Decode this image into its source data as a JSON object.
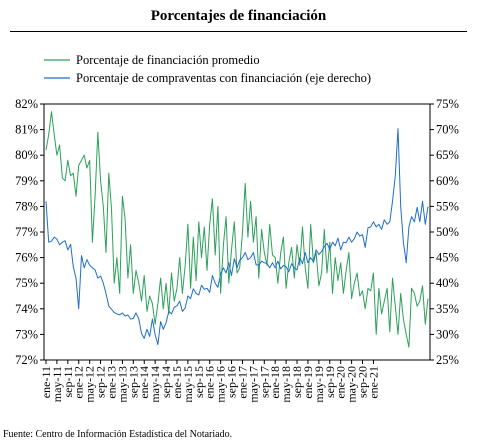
{
  "chart_data": {
    "type": "line",
    "title": "Porcentajes de financiación",
    "source": "Fuente: Centro de Información Estadística del Notariado.",
    "legend_position": "top-left",
    "x_labels": [
      "ene-11",
      "may-11",
      "sep-11",
      "ene-12",
      "may-12",
      "sep-12",
      "ene-13",
      "may-13",
      "sep-13",
      "ene-14",
      "may-14",
      "sep-14",
      "ene-15",
      "may-15",
      "sep-15",
      "ene-16",
      "may-16",
      "sep-16",
      "ene-17",
      "may-17",
      "sep-17",
      "ene-18",
      "may-18",
      "sep-18",
      "ene-19",
      "may-19",
      "sep-19",
      "ene-20",
      "may-20",
      "sep-20",
      "ene-21"
    ],
    "y_left": {
      "ticks": [
        "72%",
        "73%",
        "74%",
        "75%",
        "76%",
        "77%",
        "78%",
        "79%",
        "80%",
        "81%",
        "82%"
      ],
      "min": 72,
      "max": 82
    },
    "y_right": {
      "ticks": [
        "25%",
        "30%",
        "35%",
        "40%",
        "45%",
        "50%",
        "55%",
        "60%",
        "65%",
        "70%",
        "75%"
      ],
      "min": 25,
      "max": 75
    },
    "series": [
      {
        "name": "Porcentaje de financiación promedio",
        "color": "#2ca05a",
        "axis": "left",
        "values": [
          80.2,
          80.8,
          81.7,
          80.8,
          80.0,
          80.4,
          79.1,
          79.0,
          79.8,
          79.2,
          79.3,
          78.4,
          79.6,
          79.8,
          80.0,
          79.5,
          79.8,
          76.6,
          78.4,
          80.9,
          79.0,
          78.0,
          76.2,
          79.3,
          77.9,
          75.0,
          76.0,
          74.6,
          78.4,
          77.5,
          75.2,
          76.5,
          74.6,
          75.5,
          75.0,
          74.3,
          75.3,
          73.9,
          74.5,
          74.2,
          73.4,
          74.2,
          75.2,
          74.0,
          75.0,
          73.8,
          75.4,
          74.3,
          74.8,
          76.0,
          74.6,
          75.7,
          77.3,
          74.8,
          76.8,
          75.1,
          77.4,
          76.0,
          77.2,
          75.5,
          77.3,
          78.3,
          76.1,
          78.0,
          74.6,
          76.5,
          77.6,
          75.0,
          76.3,
          77.4,
          75.4,
          75.6,
          77.0,
          78.9,
          76.8,
          78.2,
          76.6,
          77.6,
          75.2,
          77.1,
          76.2,
          75.7,
          77.3,
          76.1,
          76.0,
          75.0,
          76.2,
          76.8,
          74.8,
          75.8,
          76.4,
          75.2,
          76.5,
          75.7,
          77.2,
          75.6,
          74.8,
          77.3,
          75.8,
          76.2,
          74.9,
          75.4,
          77.1,
          75.4,
          76.6,
          74.6,
          76.0,
          75.1,
          75.8,
          74.6,
          75.5,
          76.2,
          74.4,
          75.0,
          75.4,
          74.5,
          74.7,
          74.0,
          74.8,
          74.7,
          75.4,
          73.0,
          74.8,
          73.8,
          74.3,
          74.8,
          73.1,
          75.2,
          74.1,
          73.0,
          74.6,
          73.6,
          73.0,
          72.5,
          74.8,
          74.6,
          74.1,
          74.3,
          74.9,
          73.4,
          74.4
        ]
      },
      {
        "name": "Porcentaje de compraventas con financiación (eje derecho)",
        "color": "#1f6fc6",
        "axis": "right",
        "values": [
          56.0,
          48.0,
          48.2,
          49.0,
          48.6,
          47.5,
          48.0,
          48.3,
          46.5,
          47.6,
          43.2,
          41.0,
          35.0,
          45.4,
          43.0,
          44.6,
          43.5,
          43.0,
          42.6,
          41.0,
          41.4,
          40.0,
          38.0,
          35.5,
          34.9,
          34.3,
          34.0,
          33.8,
          34.2,
          33.6,
          33.8,
          33.0,
          33.1,
          34.2,
          33.0,
          30.2,
          29.2,
          31.0,
          29.6,
          33.0,
          30.0,
          28.0,
          32.5,
          31.0,
          32.3,
          34.5,
          34.0,
          35.3,
          35.6,
          36.5,
          34.5,
          35.2,
          37.5,
          37.0,
          38.9,
          38.0,
          37.7,
          39.6,
          38.8,
          39.0,
          38.2,
          41.5,
          40.0,
          39.2,
          41.8,
          43.0,
          42.0,
          44.0,
          41.5,
          44.8,
          43.0,
          44.5,
          45.0,
          46.0,
          44.6,
          45.0,
          46.0,
          43.6,
          43.5,
          44.3,
          44.0,
          43.8,
          43.0,
          44.0,
          43.0,
          44.3,
          42.8,
          43.5,
          43.2,
          42.2,
          43.8,
          43.0,
          42.6,
          45.0,
          43.8,
          46.0,
          44.0,
          45.0,
          44.2,
          46.5,
          45.6,
          46.2,
          47.1,
          47.8,
          46.6,
          48.0,
          47.3,
          48.8,
          46.5,
          48.0,
          47.9,
          49.0,
          48.0,
          48.7,
          50.0,
          49.2,
          49.5,
          47.0,
          50.8,
          51.0,
          52.0,
          51.0,
          51.5,
          50.5,
          52.4,
          51.5,
          52.0,
          56.0,
          61.0,
          70.2,
          55.0,
          48.0,
          44.0,
          51.0,
          53.0,
          52.0,
          54.8,
          52.0,
          56.0,
          51.5,
          55.0
        ]
      }
    ]
  }
}
